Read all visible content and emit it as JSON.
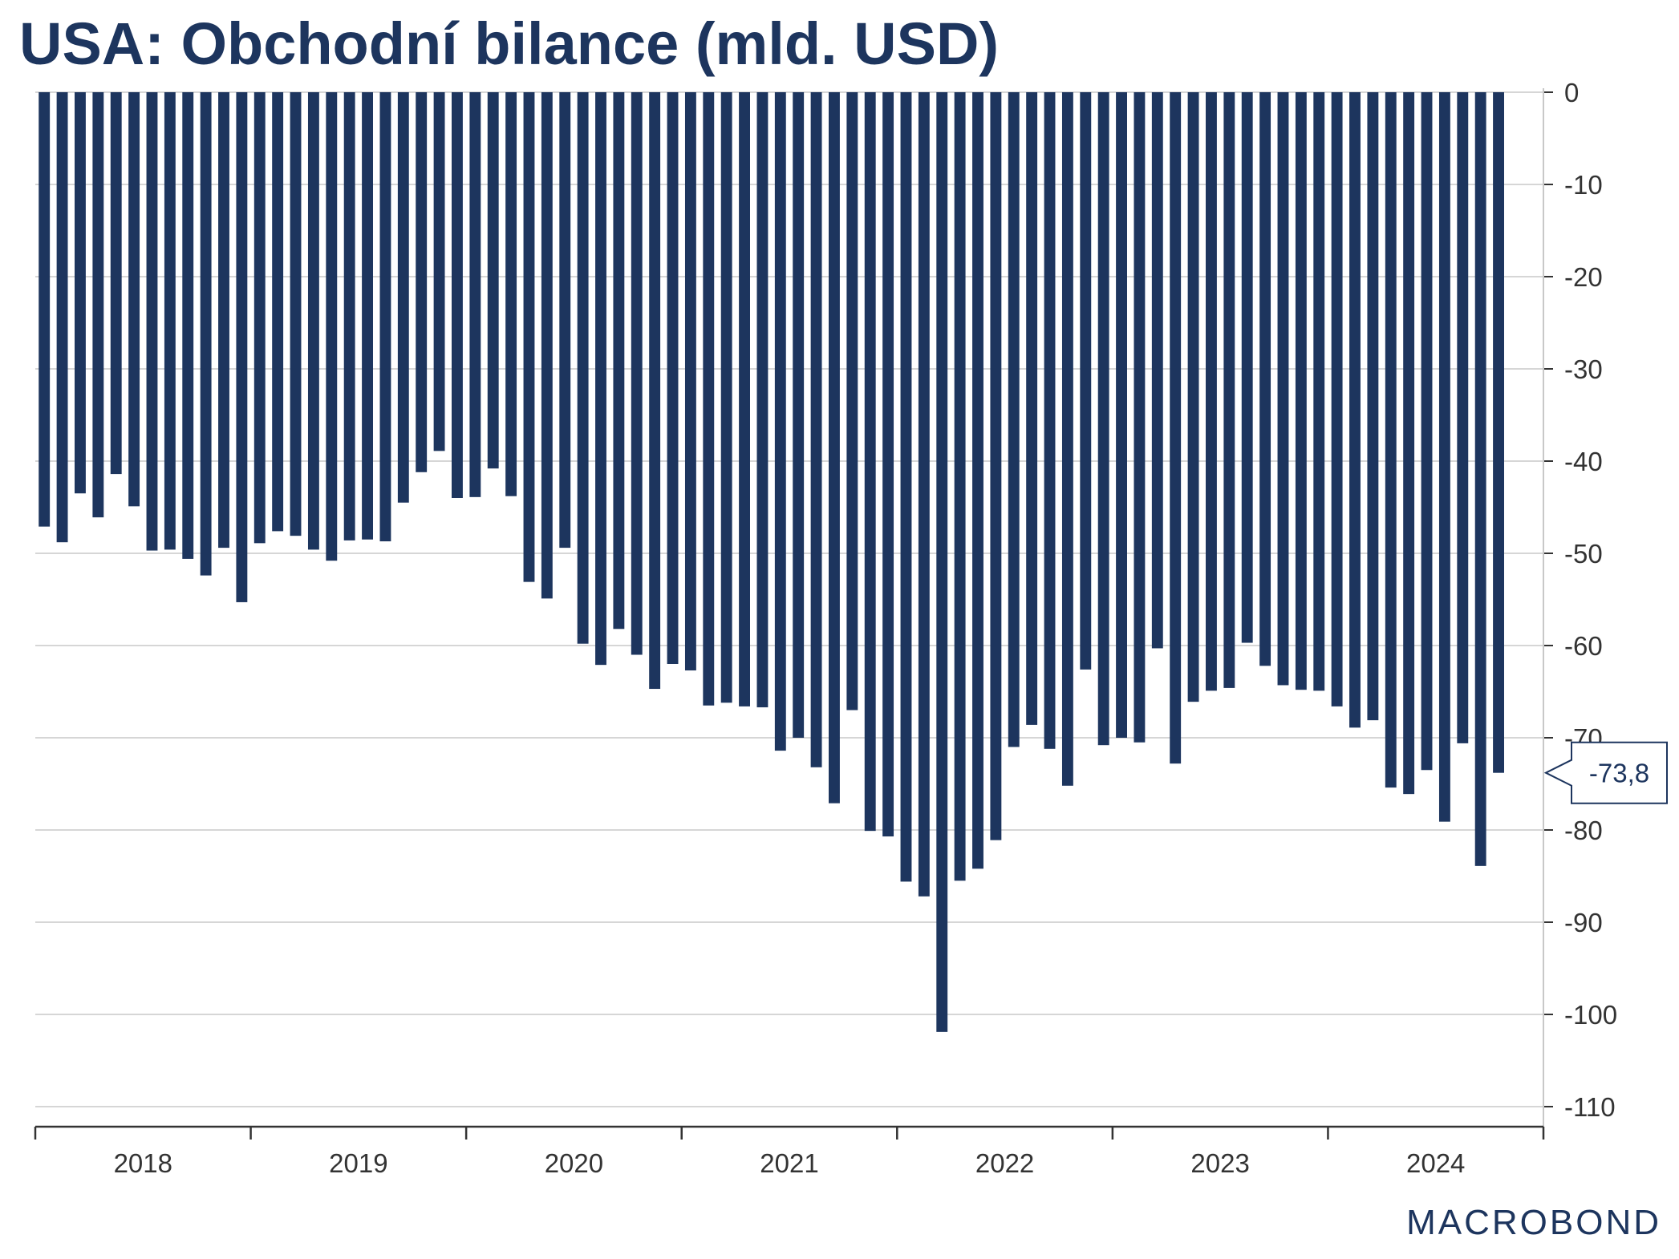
{
  "chart_data": {
    "type": "bar",
    "title": "USA: Obchodní bilance (mld. USD)",
    "xlabel": "",
    "ylabel": "",
    "ylim": [
      -110,
      0
    ],
    "yticks": [
      0,
      -10,
      -20,
      -30,
      -40,
      -50,
      -60,
      -70,
      -80,
      -90,
      -100,
      -110
    ],
    "ytick_labels": [
      "0",
      "-10",
      "-20",
      "-30",
      "-40",
      "-50",
      "-60",
      "-70",
      "-80",
      "-90",
      "-100",
      "-110"
    ],
    "year_labels": [
      "2018",
      "2019",
      "2020",
      "2021",
      "2022",
      "2023",
      "2024"
    ],
    "x_start": "2018-01",
    "frequency": "monthly",
    "grid": true,
    "y_axis_position": "right",
    "bar_color": "#1d355e",
    "values": [
      -47.1,
      -48.8,
      -43.5,
      -46.1,
      -41.4,
      -44.9,
      -49.7,
      -49.6,
      -50.6,
      -52.4,
      -49.4,
      -55.3,
      -48.9,
      -47.6,
      -48.1,
      -49.6,
      -50.8,
      -48.6,
      -48.5,
      -48.7,
      -44.5,
      -41.2,
      -38.9,
      -44.0,
      -43.9,
      -40.8,
      -43.8,
      -53.1,
      -54.9,
      -49.4,
      -59.8,
      -62.1,
      -58.2,
      -61.0,
      -64.7,
      -62.0,
      -62.7,
      -66.5,
      -66.2,
      -66.6,
      -66.7,
      -71.4,
      -70.0,
      -73.2,
      -77.1,
      -67.0,
      -80.1,
      -80.7,
      -85.6,
      -87.2,
      -101.9,
      -85.5,
      -84.2,
      -81.1,
      -71.0,
      -68.6,
      -71.2,
      -75.2,
      -62.6,
      -70.8,
      -70.0,
      -70.5,
      -60.3,
      -72.8,
      -66.1,
      -64.9,
      -64.6,
      -59.7,
      -62.2,
      -64.3,
      -64.8,
      -64.9,
      -66.6,
      -68.9,
      -68.1,
      -75.4,
      -76.1,
      -73.5,
      -79.1,
      -70.6,
      -83.9,
      -73.8
    ],
    "last_value_label": "-73,8"
  },
  "branding": {
    "logo_text": "MACROBOND"
  },
  "colors": {
    "bar": "#1d355e",
    "title": "#1d355e",
    "grid": "#c8c8c8",
    "axis": "#333333",
    "callout_border": "#1d355e"
  }
}
